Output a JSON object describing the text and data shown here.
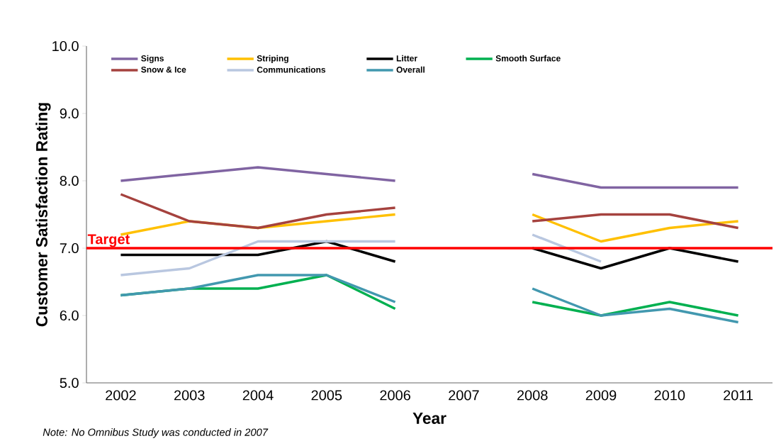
{
  "chart_data": {
    "type": "line",
    "ylabel": "Customer Satisfaction Rating",
    "xlabel": "Year",
    "categories": [
      "2002",
      "2003",
      "2004",
      "2005",
      "2006",
      "2007",
      "2008",
      "2009",
      "2010",
      "2011"
    ],
    "ylim": [
      5,
      10
    ],
    "yticks": [
      {
        "value": 5,
        "label": "5.0"
      },
      {
        "value": 6,
        "label": "6.0"
      },
      {
        "value": 7,
        "label": "7.0"
      },
      {
        "value": 8,
        "label": "8.0"
      },
      {
        "value": 9,
        "label": "9.0"
      },
      {
        "value": 10,
        "label": "10.0"
      }
    ],
    "series": [
      {
        "name": "Signs",
        "color": "#8064a2",
        "values": [
          8.0,
          8.1,
          8.2,
          8.1,
          8.0,
          null,
          8.1,
          7.9,
          7.9,
          7.9
        ]
      },
      {
        "name": "Striping",
        "color": "#ffc000",
        "values": [
          7.2,
          7.4,
          7.3,
          7.4,
          7.5,
          null,
          7.5,
          7.1,
          7.3,
          7.4
        ]
      },
      {
        "name": "Litter",
        "color": "#000000",
        "values": [
          6.9,
          6.9,
          6.9,
          7.1,
          6.8,
          null,
          7.0,
          6.7,
          7.0,
          6.8
        ]
      },
      {
        "name": "Smooth Surface",
        "color": "#00b050",
        "values": [
          6.3,
          6.4,
          6.4,
          6.6,
          6.1,
          null,
          6.2,
          6.0,
          6.2,
          6.0
        ]
      },
      {
        "name": "Snow & Ice",
        "color": "#a5423e",
        "values": [
          7.8,
          7.4,
          7.3,
          7.5,
          7.6,
          null,
          7.4,
          7.5,
          7.5,
          7.3
        ]
      },
      {
        "name": "Communications",
        "color": "#b9c7e0",
        "values": [
          6.6,
          6.7,
          7.1,
          7.1,
          7.1,
          null,
          7.2,
          6.8,
          null,
          null
        ]
      },
      {
        "name": "Overall",
        "color": "#4298af",
        "values": [
          6.3,
          6.4,
          6.6,
          6.6,
          6.2,
          null,
          6.4,
          6.0,
          6.1,
          5.9
        ]
      }
    ],
    "ref_lines": [
      {
        "axis": "y",
        "value": 7.0,
        "label": "Target",
        "color": "#ff0000"
      }
    ],
    "legend": "top",
    "grid": false,
    "marker": "none",
    "line_style": "solid",
    "annotations": [
      "Note:  No Omnibus Study was conducted in 2007"
    ]
  }
}
